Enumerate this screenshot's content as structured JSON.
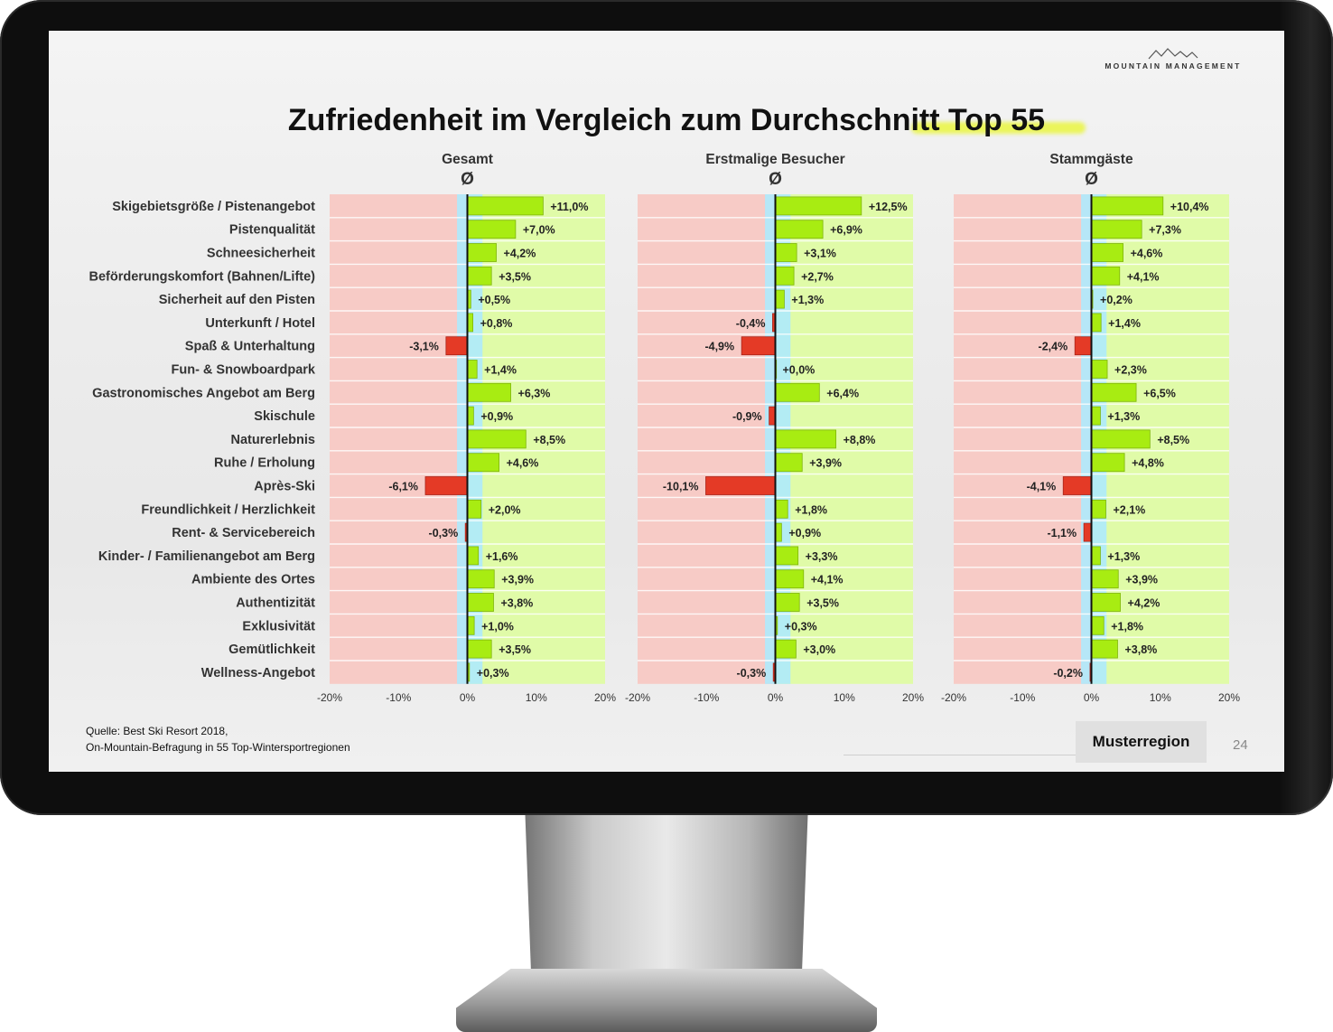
{
  "branding": {
    "logo_text": "MOUNTAIN MANAGEMENT"
  },
  "slide": {
    "title": "Zufriedenheit im Vergleich zum Durchschnitt Top 55",
    "source_line1": "Quelle: Best Ski Resort 2018,",
    "source_line2": "On-Mountain-Befragung in 55 Top-Wintersportregionen",
    "region_label": "Musterregion",
    "page_number": "24"
  },
  "colors": {
    "positive_zone": "#e0fba8",
    "negative_zone": "#f7cbc6",
    "neutral_band": "#aeeafc",
    "positive_bar": "#a8ec12",
    "negative_bar": "#e43a26"
  },
  "chart_data": {
    "type": "bar",
    "orientation": "horizontal",
    "categories": [
      "Skigebietsgröße / Pistenangebot",
      "Pistenqualität",
      "Schneesicherheit",
      "Beförderungskomfort (Bahnen/Lifte)",
      "Sicherheit auf den Pisten",
      "Unterkunft / Hotel",
      "Spaß & Unterhaltung",
      "Fun- & Snowboardpark",
      "Gastronomisches Angebot am Berg",
      "Skischule",
      "Naturerlebnis",
      "Ruhe / Erholung",
      "Après-Ski",
      "Freundlichkeit / Herzlichkeit",
      "Rent- & Servicebereich",
      "Kinder- / Familienangebot am Berg",
      "Ambiente des Ortes",
      "Authentizität",
      "Exklusivität",
      "Gemütlichkeit",
      "Wellness-Angebot"
    ],
    "xlim": [
      -20,
      20
    ],
    "xticks": [
      "-20%",
      "-10%",
      "0%",
      "10%",
      "20%"
    ],
    "avg_symbol": "Ø",
    "panels": [
      {
        "name": "Gesamt",
        "values": [
          11.0,
          7.0,
          4.2,
          3.5,
          0.5,
          0.8,
          -3.1,
          1.4,
          6.3,
          0.9,
          8.5,
          4.6,
          -6.1,
          2.0,
          -0.3,
          1.6,
          3.9,
          3.8,
          1.0,
          3.5,
          0.3
        ],
        "labels": [
          "+11,0%",
          "+7,0%",
          "+4,2%",
          "+3,5%",
          "+0,5%",
          "+0,8%",
          "-3,1%",
          "+1,4%",
          "+6,3%",
          "+0,9%",
          "+8,5%",
          "+4,6%",
          "-6,1%",
          "+2,0%",
          "-0,3%",
          "+1,6%",
          "+3,9%",
          "+3,8%",
          "+1,0%",
          "+3,5%",
          "+0,3%"
        ]
      },
      {
        "name": "Erstmalige Besucher",
        "values": [
          12.5,
          6.9,
          3.1,
          2.7,
          1.3,
          -0.4,
          -4.9,
          0.0,
          6.4,
          -0.9,
          8.8,
          3.9,
          -10.1,
          1.8,
          0.9,
          3.3,
          4.1,
          3.5,
          0.3,
          3.0,
          -0.3
        ],
        "labels": [
          "+12,5%",
          "+6,9%",
          "+3,1%",
          "+2,7%",
          "+1,3%",
          "-0,4%",
          "-4,9%",
          "+0,0%",
          "+6,4%",
          "-0,9%",
          "+8,8%",
          "+3,9%",
          "-10,1%",
          "+1,8%",
          "+0,9%",
          "+3,3%",
          "+4,1%",
          "+3,5%",
          "+0,3%",
          "+3,0%",
          "-0,3%"
        ]
      },
      {
        "name": "Stammgäste",
        "values": [
          10.4,
          7.3,
          4.6,
          4.1,
          0.2,
          1.4,
          -2.4,
          2.3,
          6.5,
          1.3,
          8.5,
          4.8,
          -4.1,
          2.1,
          -1.1,
          1.3,
          3.9,
          4.2,
          1.8,
          3.8,
          -0.2
        ],
        "labels": [
          "+10,4%",
          "+7,3%",
          "+4,6%",
          "+4,1%",
          "+0,2%",
          "+1,4%",
          "-2,4%",
          "+2,3%",
          "+6,5%",
          "+1,3%",
          "+8,5%",
          "+4,8%",
          "-4,1%",
          "+2,1%",
          "-1,1%",
          "+1,3%",
          "+3,9%",
          "+4,2%",
          "+1,8%",
          "+3,8%",
          "-0,2%"
        ]
      }
    ]
  }
}
